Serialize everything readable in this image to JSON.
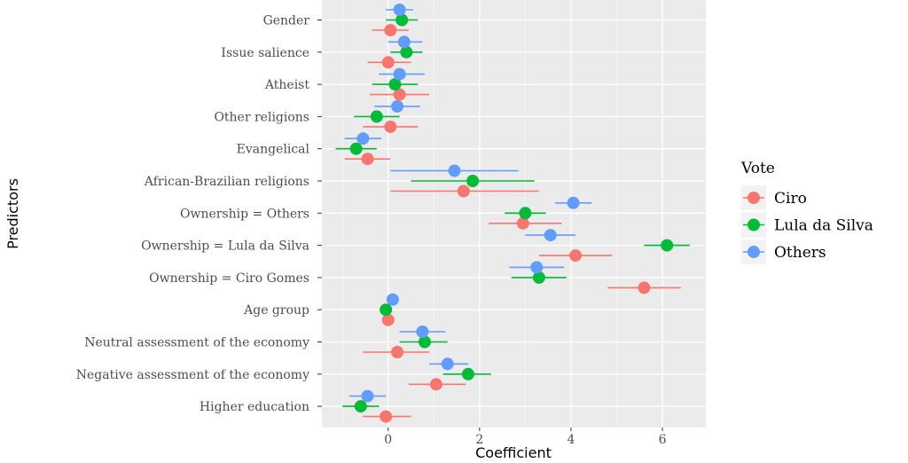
{
  "chart_data": {
    "type": "scatter",
    "subtype": "coefficient-plot",
    "title": "",
    "xlabel": "Coefficient",
    "ylabel": "Predictors",
    "xlim": [
      -1.45,
      6.95
    ],
    "xticks": [
      0,
      2,
      4,
      6
    ],
    "grid": true,
    "legend": {
      "title": "Vote",
      "position": "right"
    },
    "categories": [
      "Gender",
      "Issue salience",
      "Atheist",
      "Other religions",
      "Evangelical",
      "African-Brazilian religions",
      "Ownership = Others",
      "Ownership = Lula da Silva",
      "Ownership = Ciro Gomes",
      "Age group",
      "Neutral assessment of the economy",
      "Negative assessment of the economy",
      "Higher education"
    ],
    "series": [
      {
        "name": "Ciro",
        "color": "#F8766D",
        "values": [
          0.05,
          0.0,
          0.25,
          0.05,
          -0.45,
          1.65,
          2.95,
          4.1,
          5.6,
          0.0,
          0.2,
          1.05,
          -0.05
        ],
        "ci_low": [
          -0.35,
          -0.45,
          -0.4,
          -0.55,
          -0.95,
          0.05,
          2.2,
          3.3,
          4.8,
          0.0,
          -0.55,
          0.45,
          -0.55
        ],
        "ci_high": [
          0.45,
          0.5,
          0.9,
          0.65,
          0.05,
          3.3,
          3.8,
          4.9,
          6.4,
          0.0,
          0.9,
          1.7,
          0.5
        ]
      },
      {
        "name": "Lula da Silva",
        "color": "#00BA38",
        "values": [
          0.3,
          0.4,
          0.15,
          -0.25,
          -0.7,
          1.85,
          3.0,
          6.1,
          3.3,
          -0.05,
          0.8,
          1.75,
          -0.6
        ],
        "ci_low": [
          -0.05,
          0.05,
          -0.35,
          -0.75,
          -1.15,
          0.5,
          2.55,
          5.6,
          2.7,
          -0.05,
          0.25,
          1.2,
          -1.0
        ],
        "ci_high": [
          0.65,
          0.75,
          0.65,
          0.25,
          -0.25,
          3.2,
          3.45,
          6.6,
          3.9,
          -0.05,
          1.3,
          2.25,
          -0.2
        ]
      },
      {
        "name": "Others",
        "color": "#619CFF",
        "values": [
          0.25,
          0.35,
          0.25,
          0.2,
          -0.55,
          1.45,
          4.05,
          3.55,
          3.25,
          0.1,
          0.75,
          1.3,
          -0.45
        ],
        "ci_low": [
          -0.05,
          0.0,
          -0.2,
          -0.3,
          -0.95,
          0.05,
          3.65,
          3.0,
          2.65,
          0.1,
          0.25,
          0.9,
          -0.85
        ],
        "ci_high": [
          0.55,
          0.75,
          0.8,
          0.7,
          -0.15,
          2.85,
          4.45,
          4.1,
          3.85,
          0.1,
          1.25,
          1.75,
          -0.05
        ]
      }
    ]
  }
}
